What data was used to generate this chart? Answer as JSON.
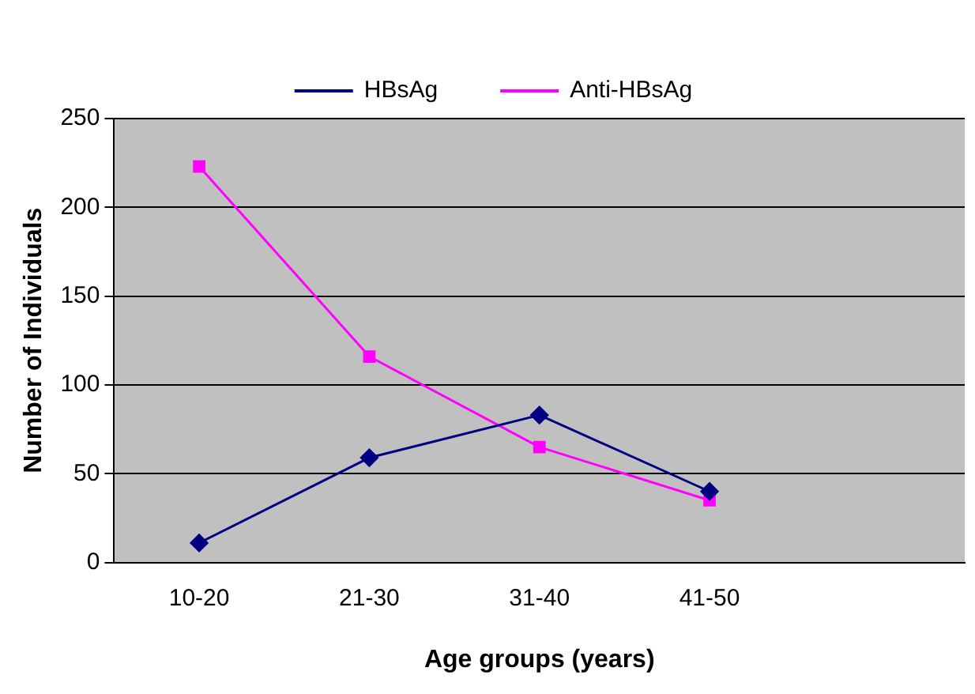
{
  "chart_data": {
    "type": "line",
    "xlabel": "Age groups (years)",
    "ylabel": "Number of Individuals",
    "categories": [
      "10-20",
      "21-30",
      "31-40",
      "41-50",
      null
    ],
    "series": [
      {
        "name": "HBsAg",
        "color": "#000080",
        "marker": "diamond",
        "values": [
          11,
          59,
          83,
          40,
          null
        ]
      },
      {
        "name": "Anti-HBsAg",
        "color": "#ff00ff",
        "marker": "square",
        "values": [
          223,
          116,
          65,
          35,
          null
        ]
      }
    ],
    "ylim": [
      0,
      250
    ],
    "yticks": [
      0,
      50,
      100,
      150,
      200,
      250
    ],
    "grid": "y",
    "legend": "top",
    "line_style": "solid"
  }
}
